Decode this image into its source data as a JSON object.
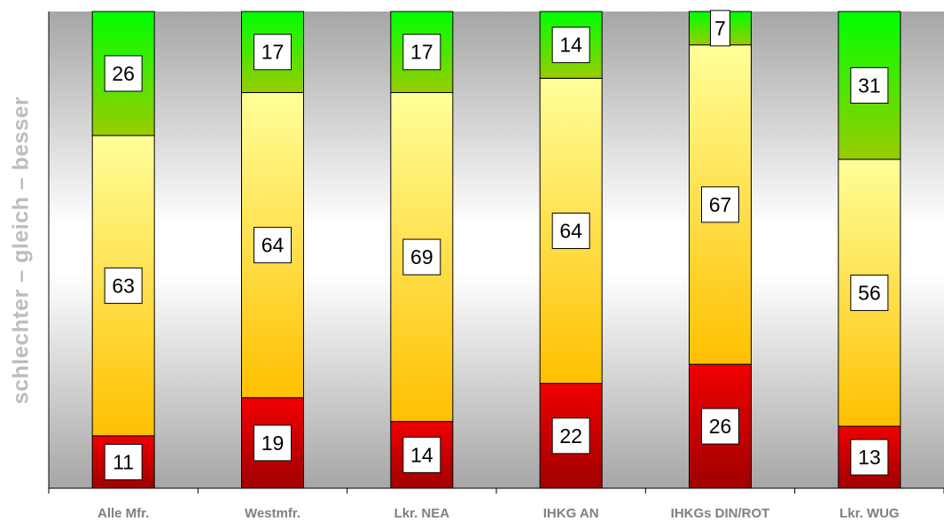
{
  "chart_data": {
    "type": "bar",
    "stacked": true,
    "normalized_to": 100,
    "ylabel": "schlechter  –  gleich  –  besser",
    "xlabel": "",
    "categories": [
      "Alle Mfr.",
      "Westmfr.",
      "Lkr. NEA",
      "IHKG AN",
      "IHKGs DIN/ROT",
      "Lkr. WUG"
    ],
    "series": [
      {
        "values": [
          11,
          19,
          14,
          22,
          26,
          13
        ]
      },
      {
        "values": [
          63,
          64,
          69,
          64,
          67,
          56
        ]
      },
      {
        "values": [
          26,
          17,
          17,
          14,
          7,
          31
        ]
      }
    ],
    "data_labels": true,
    "grid": false,
    "legend": "none"
  },
  "colors": {
    "schlechter_top": "#f00000",
    "schlechter_bottom": "#a00000",
    "gleich_top": "#ffff99",
    "gleich_bottom": "#ffc000",
    "besser_top": "#00ff00",
    "besser_bottom": "#99cc00",
    "plot_band_light": "#ffffff",
    "plot_band_dark": "#a6a6a6",
    "axis_label": "#808080",
    "ylabel_text": "#bdbdbd"
  }
}
